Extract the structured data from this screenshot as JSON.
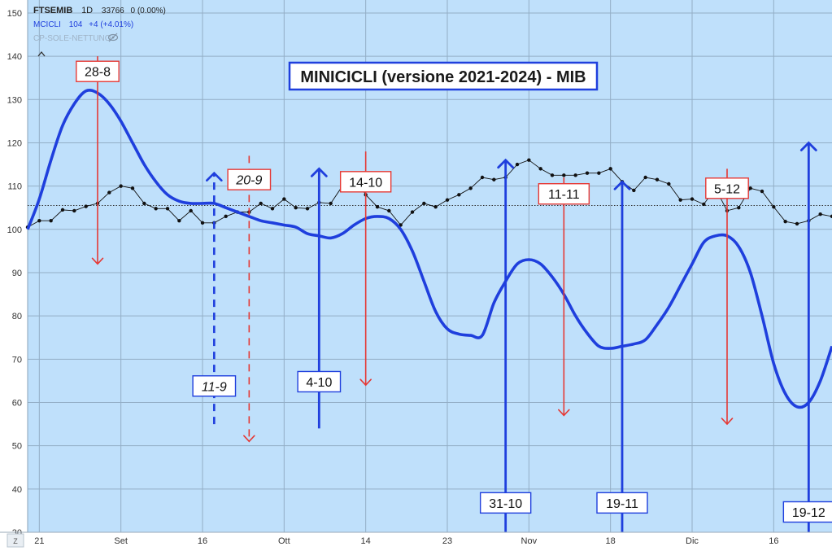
{
  "legend": {
    "symbol": "FTSEMIB",
    "interval": "1D",
    "close": "33766",
    "change": "0 (0.00%)",
    "indicator_name": "MCICLI",
    "indicator_value": "104",
    "indicator_change": "+4 (+4.01%)",
    "extra": "CP-SOLE-NETTUNO",
    "eye_icon": "eye-off-icon",
    "collapse_icon": "chevron-up-icon"
  },
  "corner_label": "Z",
  "colors": {
    "background": "#bfe0fb",
    "grid": "#93aec6",
    "cycle": "#1f3fdd",
    "price": "#111111",
    "red": "#e53935",
    "blue": "#1f3fdd"
  },
  "chart_data": {
    "type": "line",
    "title": "MINICICLI (versione 2021-2024) - MIB",
    "ylim": [
      30,
      153
    ],
    "yticks": [
      30,
      40,
      50,
      60,
      70,
      80,
      90,
      100,
      110,
      120,
      130,
      140,
      150
    ],
    "xlim": [
      -1,
      68
    ],
    "xticks": [
      {
        "x": 0,
        "label": "21"
      },
      {
        "x": 7,
        "label": "Set"
      },
      {
        "x": 14,
        "label": "16"
      },
      {
        "x": 21,
        "label": "Ott"
      },
      {
        "x": 28,
        "label": "14"
      },
      {
        "x": 35,
        "label": "23"
      },
      {
        "x": 42,
        "label": "Nov"
      },
      {
        "x": 49,
        "label": "18"
      },
      {
        "x": 56,
        "label": "Dic"
      },
      {
        "x": 63,
        "label": "16"
      }
    ],
    "reference_line": 105.5,
    "series": [
      {
        "key": "cycle",
        "x": [
          -1,
          0,
          1,
          2,
          3,
          4,
          5,
          6,
          7,
          8,
          9,
          10,
          11,
          12,
          13,
          14,
          15,
          16,
          17,
          18,
          19,
          20,
          21,
          22,
          23,
          24,
          25,
          26,
          27,
          28,
          29,
          30,
          31,
          32,
          33,
          34,
          35,
          36,
          37,
          38,
          39,
          40,
          41,
          42,
          43,
          44,
          45,
          46,
          47,
          48,
          49,
          50,
          51,
          52,
          53,
          54,
          55,
          56,
          57,
          58,
          59,
          60,
          61,
          62,
          63,
          64,
          65,
          66,
          67,
          68
        ],
        "values": [
          100,
          107,
          116,
          124,
          129,
          132,
          131.5,
          129,
          125,
          120,
          115,
          111,
          108,
          106.5,
          106,
          106,
          106,
          105,
          104,
          103,
          102,
          101.5,
          101,
          100.5,
          99,
          98.5,
          98,
          99,
          101,
          102.5,
          103,
          102.5,
          100,
          95,
          88,
          81,
          77,
          75.8,
          75.5,
          75.5,
          83,
          88,
          92,
          93,
          92,
          89,
          85,
          80,
          76,
          73,
          72.5,
          73,
          73.5,
          74.5,
          78,
          82,
          87,
          92,
          97,
          98.5,
          98.5,
          96,
          90,
          80,
          69,
          62,
          59,
          60,
          65,
          73
        ]
      },
      {
        "key": "price",
        "x": [
          -1,
          0,
          1,
          2,
          3,
          4,
          5,
          6,
          7,
          8,
          9,
          10,
          11,
          12,
          13,
          14,
          15,
          16,
          17,
          18,
          19,
          20,
          21,
          22,
          23,
          24,
          25,
          26,
          27,
          28,
          29,
          30,
          31,
          32,
          33,
          34,
          35,
          36,
          37,
          38,
          39,
          40,
          41,
          42,
          43,
          44,
          45,
          46,
          47,
          48,
          49,
          50,
          51,
          52,
          53,
          54,
          55,
          56,
          57,
          58,
          59,
          60,
          61,
          62,
          63,
          64,
          65,
          66,
          67,
          68
        ],
        "values": [
          100.5,
          102,
          102,
          104.5,
          104.3,
          105.3,
          106,
          108.5,
          110,
          109.5,
          106,
          104.8,
          104.8,
          102,
          104.3,
          101.5,
          101.5,
          103,
          104,
          104,
          106,
          104.8,
          107,
          105,
          104.8,
          106.2,
          106,
          110,
          112.5,
          108,
          105.2,
          104.3,
          101,
          104,
          106,
          105.2,
          106.8,
          108,
          109.5,
          112,
          111.5,
          112,
          115,
          116,
          114,
          112.5,
          112.5,
          112.5,
          113,
          113,
          114,
          111,
          109,
          112,
          111.5,
          110.5,
          106.8,
          107,
          105.8,
          109.5,
          104.3,
          105,
          109.5,
          108.8,
          105.2,
          101.8,
          101.3,
          102,
          103.5,
          103
        ]
      }
    ],
    "markers": [
      {
        "label": "28-8",
        "color": "red",
        "style": "solid",
        "direction": "down",
        "x": 5,
        "from": 140,
        "to": 92,
        "label_y": 136.5,
        "italic": false
      },
      {
        "label": "11-9",
        "color": "blue",
        "style": "dashed",
        "direction": "up",
        "x": 15,
        "from": 55,
        "to": 113,
        "label_y": 63.8,
        "italic": true
      },
      {
        "label": "20-9",
        "color": "red",
        "style": "dashed",
        "direction": "down",
        "x": 18,
        "from": 117,
        "to": 51,
        "label_y": 111.5,
        "italic": true
      },
      {
        "label": "4-10",
        "color": "blue",
        "style": "solid",
        "direction": "up",
        "x": 24,
        "from": 54,
        "to": 114,
        "label_y": 64.8,
        "italic": false
      },
      {
        "label": "14-10",
        "color": "red",
        "style": "solid",
        "direction": "down",
        "x": 28,
        "from": 118,
        "to": 64,
        "label_y": 111,
        "italic": false
      },
      {
        "label": "31-10",
        "color": "blue",
        "style": "solid",
        "direction": "up",
        "x": 40,
        "from": 30,
        "to": 116,
        "label_y": 36.8,
        "italic": false
      },
      {
        "label": "11-11",
        "color": "red",
        "style": "solid",
        "direction": "down",
        "x": 45,
        "from": 112,
        "to": 57,
        "label_y": 108.2,
        "italic": false
      },
      {
        "label": "19-11",
        "color": "blue",
        "style": "solid",
        "direction": "up",
        "x": 50,
        "from": 30,
        "to": 111,
        "label_y": 36.8,
        "italic": false
      },
      {
        "label": "5-12",
        "color": "red",
        "style": "solid",
        "direction": "down",
        "x": 59,
        "from": 114,
        "to": 55,
        "label_y": 109.5,
        "italic": false
      },
      {
        "label": "19-12",
        "color": "blue",
        "style": "solid",
        "direction": "up",
        "x": 66,
        "from": 30,
        "to": 120,
        "label_y": 34.7,
        "italic": false
      }
    ]
  }
}
